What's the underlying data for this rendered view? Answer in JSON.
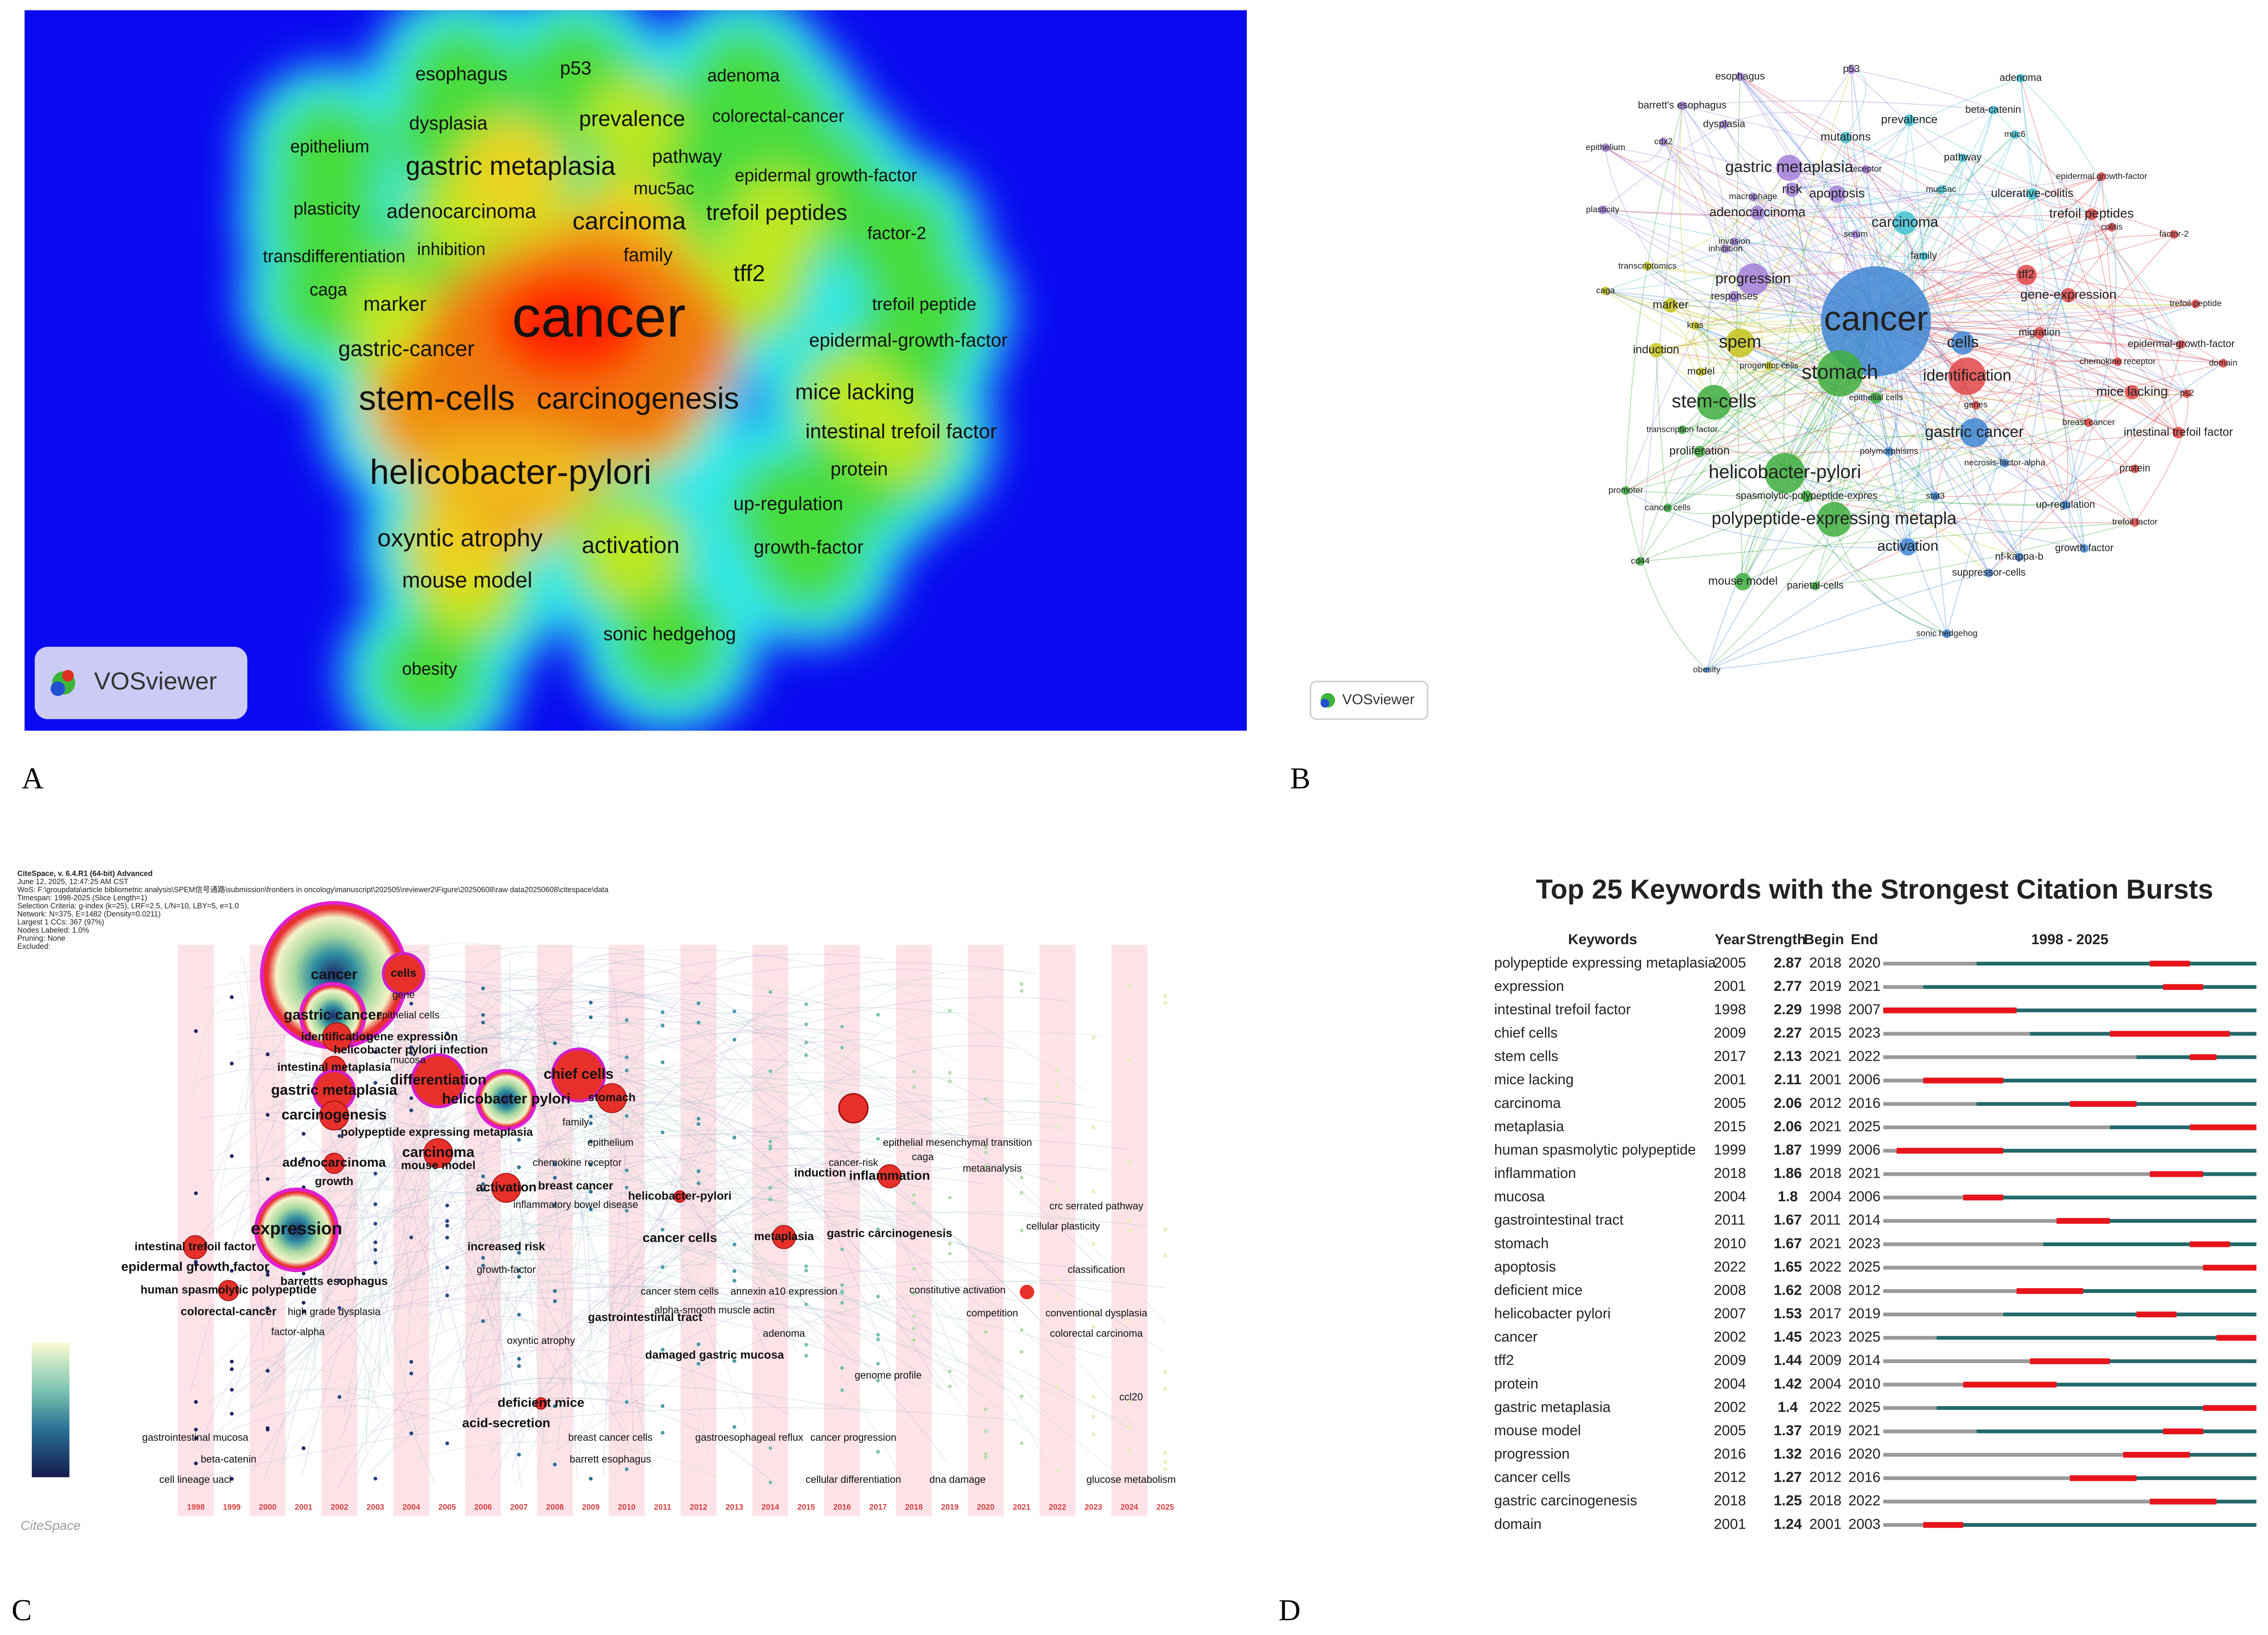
{
  "panel_labels": [
    "A",
    "B",
    "C",
    "D"
  ],
  "density_map": {
    "logo": "VOSviewer",
    "terms": [
      "esophagus",
      "p53",
      "adenoma",
      "dysplasia",
      "prevalence",
      "colorectal-cancer",
      "epithelium",
      "gastric metaplasia",
      "pathway",
      "epidermal growth-factor",
      "muc5ac",
      "plasticity",
      "adenocarcinoma",
      "carcinoma",
      "trefoil peptides",
      "factor-2",
      "transdifferentiation",
      "inhibition",
      "family",
      "tff2",
      "caga",
      "marker",
      "cancer",
      "trefoil peptide",
      "epidermal-growth-factor",
      "gastric-cancer",
      "stem-cells",
      "carcinogenesis",
      "mice lacking",
      "intestinal trefoil factor",
      "helicobacter-pylori",
      "protein",
      "up-regulation",
      "oxyntic atrophy",
      "activation",
      "growth-factor",
      "mouse model",
      "sonic hedgehog",
      "obesity"
    ]
  },
  "network_map": {
    "logo": "VOSviewer",
    "terms": [
      "esophagus",
      "p53",
      "adenoma",
      "barrett's esophagus",
      "beta-catenin",
      "dysplasia",
      "prevalence",
      "muc6",
      "mutations",
      "epithelium",
      "cdx2",
      "pathway",
      "receptor",
      "gastric metaplasia",
      "epidermal growth-factor",
      "risk",
      "macrophage",
      "apoptosis",
      "muc5ac",
      "ulcerative-colitis",
      "plasticity",
      "adenocarcinoma",
      "trefoil peptides",
      "colitis",
      "carcinoma",
      "factor-2",
      "invasion",
      "serum",
      "inhibition",
      "family",
      "transcriptomics",
      "tff2",
      "progression",
      "responses",
      "gene-expression",
      "caga",
      "cancer",
      "trefoil peptide",
      "marker",
      "migration",
      "kras",
      "spem",
      "cells",
      "induction",
      "chemokine receptor",
      "epidermal-growth-factor",
      "domain",
      "model",
      "progenitor cells",
      "stomach",
      "identification",
      "epithelial cells",
      "mice lacking",
      "stem-cells",
      "genes",
      "ps2",
      "transcription factor",
      "breast cancer",
      "gastric cancer",
      "intestinal trefoil factor",
      "proliferation",
      "polymorphisms",
      "necrosis-factor-alpha",
      "protein",
      "helicobacter-pylori",
      "promoter",
      "spasmolytic-polypeptide-expres",
      "stat3",
      "cancer cells",
      "up-regulation",
      "polypeptide-expressing metapla",
      "trefoil factor",
      "activation",
      "growth factor",
      "cd44",
      "nf-kappa-b",
      "mouse model",
      "suppressor-cells",
      "parietal-cells",
      "sonic hedgehog",
      "obesity"
    ]
  },
  "timeline": {
    "logo": "CiteSpace",
    "header": [
      "CiteSpace, v. 6.4.R1 (64-bit) Advanced",
      "June 12, 2025, 12:47:25 AM CST",
      "WoS: F:\\groupdata\\article bibliometric analysis\\SPEM信号通路\\submission\\frontiers in oncology\\manuscript\\202505\\reviewer2\\Figure\\20250608\\raw data20250608\\citespace\\data",
      "Timespan: 1998-2025 (Slice Length=1)",
      "Selection Criteria: g-index (k=25), LRF=2.5, L/N=10, LBY=5, e=1.0",
      "Network: N=375, E=1482 (Density=0.0211)",
      "Largest 1 CCs: 367 (97%)",
      "Nodes Labeled: 1.0%",
      "Pruning: None",
      "Excluded:"
    ],
    "years": [
      1998,
      1999,
      2000,
      2001,
      2002,
      2003,
      2004,
      2005,
      2006,
      2007,
      2008,
      2009,
      2010,
      2011,
      2012,
      2013,
      2014,
      2015,
      2016,
      2017,
      2018,
      2019,
      2020,
      2021,
      2022,
      2023,
      2024,
      2025
    ],
    "terms": [
      "cancer",
      "cells",
      "gene",
      "epithelial cells",
      "gastric cancer",
      "identification",
      "gene expression",
      "helicobacter pylori infection",
      "mucosa",
      "intestinal metaplasia",
      "gastric metaplasia",
      "differentiation",
      "helicobacter pylori",
      "chief cells",
      "stomach",
      "carcinogenesis",
      "polypeptide expressing metaplasia",
      "carcinoma",
      "adenocarcinoma",
      "mouse model",
      "growth",
      "activation",
      "chemokine receptor",
      "epithelium",
      "breast cancer",
      "inflammatory bowel disease",
      "helicobacter-pylori",
      "induction",
      "inflammation",
      "metaanalysis",
      "expression",
      "intestinal trefoil factor",
      "epidermal growth factor",
      "human spasmolytic polypeptide",
      "colorectal-cancer",
      "barretts esophagus",
      "high grade dysplasia",
      "metaplasia",
      "cancer cells",
      "increased risk",
      "growth-factor",
      "gastric carcinogenesis",
      "damaged gastric mucosa",
      "gastrointestinal tract",
      "annexin a10 expression",
      "cancer stem cells",
      "alpha-smooth muscle actin",
      "adenoma",
      "deficient mice",
      "acid-secretion",
      "breast cancer cells",
      "barrett esophagus",
      "gastroesophageal reflux",
      "cell lineage uacl",
      "gastrointestinal mucosa",
      "beta-catenin",
      "factor-alpha",
      "oxyntic atrophy",
      "crc serrated pathway",
      "cellular plasticity",
      "classification",
      "conventional dysplasia",
      "colorectal carcinoma",
      "glucose metabolism",
      "ccl20",
      "cellular differentiation",
      "dna damage",
      "genome profile",
      "cancer progression",
      "competition",
      "constitutive activation",
      "epithelial mesenchymal transition",
      "cancer-risk",
      "caga",
      "family"
    ]
  },
  "chart_data": {
    "type": "burst",
    "title": "Top 25 Keywords with the Strongest Citation Bursts",
    "columns": [
      "Keywords",
      "Year",
      "Strength",
      "Begin",
      "End"
    ],
    "range_label": "1998 - 2025",
    "xlim": [
      1998,
      2025
    ],
    "colors": {
      "before": "#9a9a9a",
      "active": "#22696b",
      "burst": "#e8141c"
    },
    "rows": [
      {
        "keyword": "polypeptide expressing metaplasia",
        "year": 2005,
        "strength": 2.87,
        "begin": 2018,
        "end": 2020
      },
      {
        "keyword": "expression",
        "year": 2001,
        "strength": 2.77,
        "begin": 2019,
        "end": 2021
      },
      {
        "keyword": "intestinal trefoil factor",
        "year": 1998,
        "strength": 2.29,
        "begin": 1998,
        "end": 2007
      },
      {
        "keyword": "chief cells",
        "year": 2009,
        "strength": 2.27,
        "begin": 2015,
        "end": 2023
      },
      {
        "keyword": "stem cells",
        "year": 2017,
        "strength": 2.13,
        "begin": 2021,
        "end": 2022
      },
      {
        "keyword": "mice lacking",
        "year": 2001,
        "strength": 2.11,
        "begin": 2001,
        "end": 2006
      },
      {
        "keyword": "carcinoma",
        "year": 2005,
        "strength": 2.06,
        "begin": 2012,
        "end": 2016
      },
      {
        "keyword": "metaplasia",
        "year": 2015,
        "strength": 2.06,
        "begin": 2021,
        "end": 2025
      },
      {
        "keyword": "human spasmolytic polypeptide",
        "year": 1999,
        "strength": 1.87,
        "begin": 1999,
        "end": 2006
      },
      {
        "keyword": "inflammation",
        "year": 2018,
        "strength": 1.86,
        "begin": 2018,
        "end": 2021
      },
      {
        "keyword": "mucosa",
        "year": 2004,
        "strength": 1.8,
        "begin": 2004,
        "end": 2006
      },
      {
        "keyword": "gastrointestinal tract",
        "year": 2011,
        "strength": 1.67,
        "begin": 2011,
        "end": 2014
      },
      {
        "keyword": "stomach",
        "year": 2010,
        "strength": 1.67,
        "begin": 2021,
        "end": 2023
      },
      {
        "keyword": "apoptosis",
        "year": 2022,
        "strength": 1.65,
        "begin": 2022,
        "end": 2025
      },
      {
        "keyword": "deficient mice",
        "year": 2008,
        "strength": 1.62,
        "begin": 2008,
        "end": 2012
      },
      {
        "keyword": "helicobacter pylori",
        "year": 2007,
        "strength": 1.53,
        "begin": 2017,
        "end": 2019
      },
      {
        "keyword": "cancer",
        "year": 2002,
        "strength": 1.45,
        "begin": 2023,
        "end": 2025
      },
      {
        "keyword": "tff2",
        "year": 2009,
        "strength": 1.44,
        "begin": 2009,
        "end": 2014
      },
      {
        "keyword": "protein",
        "year": 2004,
        "strength": 1.42,
        "begin": 2004,
        "end": 2010
      },
      {
        "keyword": "gastric metaplasia",
        "year": 2002,
        "strength": 1.4,
        "begin": 2022,
        "end": 2025
      },
      {
        "keyword": "mouse model",
        "year": 2005,
        "strength": 1.37,
        "begin": 2019,
        "end": 2021
      },
      {
        "keyword": "progression",
        "year": 2016,
        "strength": 1.32,
        "begin": 2016,
        "end": 2020
      },
      {
        "keyword": "cancer cells",
        "year": 2012,
        "strength": 1.27,
        "begin": 2012,
        "end": 2016
      },
      {
        "keyword": "gastric carcinogenesis",
        "year": 2018,
        "strength": 1.25,
        "begin": 2018,
        "end": 2022
      },
      {
        "keyword": "domain",
        "year": 2001,
        "strength": 1.24,
        "begin": 2001,
        "end": 2003
      }
    ]
  }
}
